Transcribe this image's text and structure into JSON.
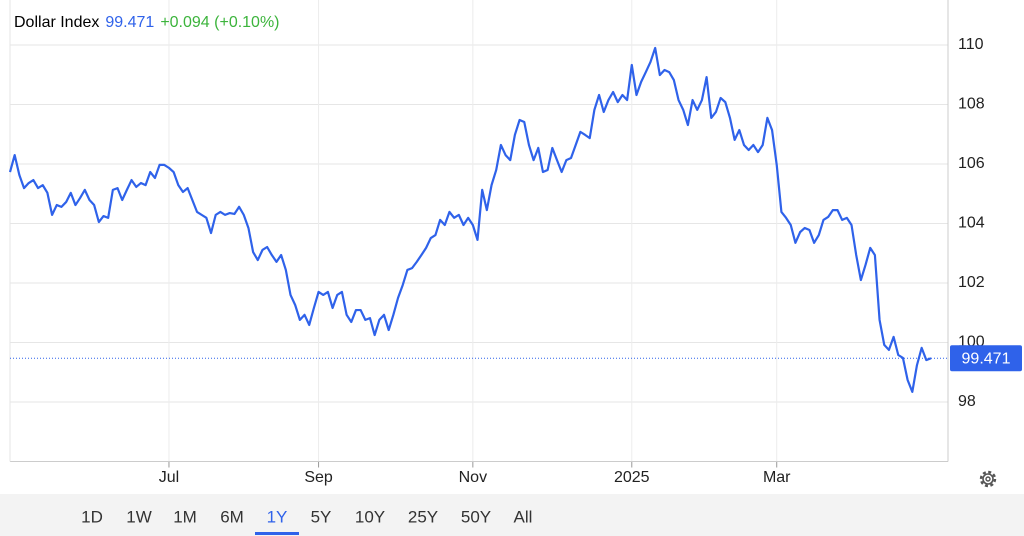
{
  "chart_data": {
    "type": "line",
    "title": "Dollar Index",
    "price": "99.471",
    "change": "+0.094 (+0.10%)",
    "color": "#2f62ea",
    "change_color": "#3cb43c",
    "values": [
      105.73,
      106.3,
      105.63,
      105.19,
      105.36,
      105.46,
      105.19,
      105.29,
      105.03,
      104.29,
      104.62,
      104.56,
      104.72,
      105.03,
      104.62,
      104.86,
      105.13,
      104.79,
      104.62,
      104.05,
      104.25,
      104.19,
      105.13,
      105.19,
      104.79,
      105.13,
      105.46,
      105.23,
      105.36,
      105.29,
      105.73,
      105.53,
      105.97,
      105.97,
      105.87,
      105.73,
      105.29,
      105.06,
      105.19,
      104.79,
      104.39,
      104.29,
      104.19,
      103.68,
      104.29,
      104.39,
      104.29,
      104.35,
      104.32,
      104.56,
      104.29,
      103.85,
      103.04,
      102.77,
      103.11,
      103.21,
      102.94,
      102.71,
      102.94,
      102.44,
      101.6,
      101.26,
      100.76,
      100.93,
      100.59,
      101.16,
      101.7,
      101.6,
      101.7,
      101.16,
      101.6,
      101.7,
      100.93,
      100.69,
      101.09,
      101.09,
      100.76,
      100.82,
      100.25,
      100.76,
      100.93,
      100.42,
      100.93,
      101.5,
      101.93,
      102.44,
      102.5,
      102.71,
      102.94,
      103.18,
      103.51,
      103.61,
      104.12,
      103.95,
      104.39,
      104.19,
      104.29,
      103.95,
      104.19,
      103.95,
      103.45,
      105.13,
      104.45,
      105.29,
      105.8,
      106.64,
      106.3,
      106.13,
      106.98,
      107.48,
      107.41,
      106.64,
      106.13,
      106.54,
      105.73,
      105.8,
      106.54,
      106.13,
      105.73,
      106.13,
      106.2,
      106.64,
      107.08,
      106.98,
      106.87,
      107.82,
      108.32,
      107.75,
      108.15,
      108.42,
      108.08,
      108.32,
      108.15,
      109.33,
      108.32,
      108.76,
      109.09,
      109.43,
      109.9,
      108.99,
      109.16,
      109.09,
      108.82,
      108.15,
      107.82,
      107.31,
      108.15,
      107.82,
      108.15,
      108.92,
      107.55,
      107.75,
      108.22,
      108.08,
      107.55,
      106.81,
      107.14,
      106.64,
      106.47,
      106.64,
      106.4,
      106.64,
      107.55,
      107.14,
      105.97,
      104.39,
      104.19,
      103.95,
      103.35,
      103.71,
      103.85,
      103.78,
      103.35,
      103.61,
      104.12,
      104.22,
      104.45,
      104.45,
      104.12,
      104.19,
      103.95,
      102.94,
      102.1,
      102.61,
      103.18,
      102.94,
      100.76,
      99.92,
      99.75,
      100.19,
      99.58,
      99.48,
      98.74,
      98.34,
      99.24,
      99.82,
      99.41,
      99.471
    ],
    "xlim": [
      0,
      197
    ],
    "xticks": [
      {
        "value": 34,
        "label": "Jul"
      },
      {
        "value": 66,
        "label": "Sep"
      },
      {
        "value": 99,
        "label": "Nov"
      },
      {
        "value": 133,
        "label": "2025"
      },
      {
        "value": 164,
        "label": "Mar"
      }
    ],
    "ylim": [
      96,
      111
    ],
    "yticks": [
      98,
      100,
      102,
      104,
      106,
      108,
      110
    ],
    "grid": true
  },
  "toolbar": {
    "ranges": [
      "1D",
      "1W",
      "1M",
      "6M",
      "1Y",
      "5Y",
      "10Y",
      "25Y",
      "50Y",
      "All"
    ],
    "active": 4
  }
}
